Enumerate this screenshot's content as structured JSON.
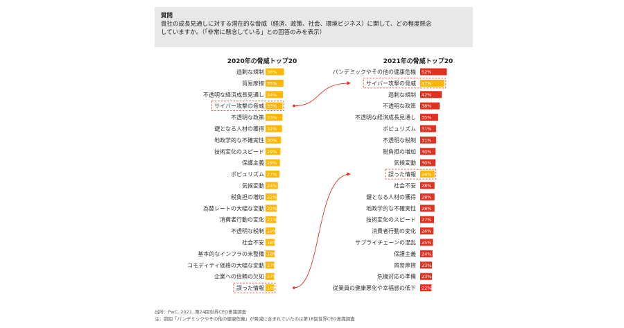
{
  "question": {
    "heading": "質問",
    "line1": "貴社の成長見通しに対する潜在的な脅威（経済、政策、社会、環境ビジネス）に関して、どの程度懸念",
    "line2": "していますか。（「非常に懸念している」との回答のみを表示）"
  },
  "chart_data": [
    {
      "type": "bar",
      "orientation": "horizontal",
      "title": "2020年の脅威トップ20",
      "bar_color": "#ffb600",
      "categories": [
        "過剰な規制",
        "貿易摩擦",
        "不透明な経済成長見通し",
        "サイバー攻撃の脅威",
        "不透明な政策",
        "鍵となる人材の獲得",
        "地政学的な不確実性",
        "技術変化のスピード",
        "保護主義",
        "ポピュリズム",
        "気候変動",
        "税負担の増加",
        "為替レートの大幅な変動",
        "消費者行動の変化",
        "不透明な税制",
        "社会不安",
        "基本的なインフラの未整備",
        "コモディティ価格の大幅な変動",
        "企業への信頼の欠如",
        "誤った情報"
      ],
      "values": [
        36,
        35,
        34,
        33,
        33,
        32,
        30,
        29,
        28,
        27,
        24,
        22,
        22,
        21,
        19,
        18,
        18,
        17,
        17,
        16
      ],
      "value_labels": [
        "36%",
        "35%",
        "34%",
        "33%",
        "33%",
        "32%",
        "30%",
        "29%",
        "28%",
        "27%",
        "24%",
        "22%",
        "22%",
        "21%",
        "19%",
        "18%",
        "18%",
        "17%",
        "17%",
        "16%"
      ],
      "highlighted": [
        "サイバー攻撃の脅威",
        "誤った情報"
      ]
    },
    {
      "type": "bar",
      "orientation": "horizontal",
      "title": "2021年の脅威トップ20",
      "bar_color": "#e0301e",
      "categories": [
        "パンデミックやその他の健康危機",
        "サイバー攻撃の脅威",
        "過剰な規制",
        "不透明な政策",
        "不透明な経済成長見通し",
        "ポピュリズム",
        "不透明な税制",
        "税負担の増加",
        "気候変動",
        "誤った情報",
        "社会不安",
        "鍵となる人材の獲得",
        "地政学的な不確実性",
        "技術変化のスピード",
        "消費者行動の変化",
        "サプライチェーンの混乱",
        "保護主義",
        "貿易摩擦",
        "危機対応の準備",
        "従業員の健康悪化や幸福感の低下"
      ],
      "values": [
        52,
        47,
        42,
        38,
        35,
        31,
        31,
        30,
        30,
        28,
        28,
        28,
        28,
        27,
        26,
        25,
        24,
        23,
        23,
        22
      ],
      "value_labels": [
        "52%",
        "47%",
        "42%",
        "38%",
        "35%",
        "31%",
        "31%",
        "30%",
        "30%",
        "28%",
        "28%",
        "28%",
        "28%",
        "27%",
        "26%",
        "25%",
        "24%",
        "23%",
        "23%",
        "22%"
      ],
      "highlighted": [
        "サイバー攻撃の脅威",
        "誤った情報"
      ],
      "highlight_color": "#ffb600"
    }
  ],
  "footer": {
    "source": "出所：PwC, 2021, 第24回世界CEO意識調査",
    "note": "注：前回「パンデミックやその他の健康危機」が脅威に含まれていたのは第18回世界CEO意識調査"
  }
}
